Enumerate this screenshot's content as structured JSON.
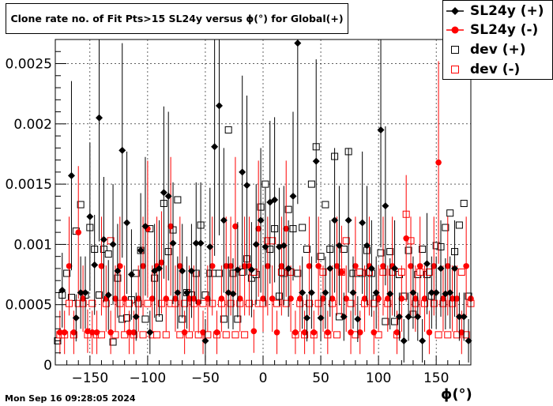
{
  "chart_data": {
    "type": "scatter",
    "title": "Clone rate no. of Fit Pts>15 SL24y versus ϕ(°) for Global(+)",
    "xlabel": "ϕ(°)",
    "ylabel": "",
    "xlim": [
      -180,
      180
    ],
    "ylim": [
      0,
      0.0027
    ],
    "x_ticks": [
      -150,
      -100,
      -50,
      0,
      50,
      100,
      150
    ],
    "x_tick_labels": [
      "−150",
      "−100",
      "−50",
      "0",
      "50",
      "100",
      "150"
    ],
    "y_ticks": [
      0,
      0.0005,
      0.001,
      0.0015,
      0.002,
      0.0025
    ],
    "y_tick_labels": [
      "0",
      "0.0005",
      "0.001",
      "0.0015",
      "0.002",
      "0.0025"
    ],
    "grid": true,
    "legend_position": "top-right",
    "series": [
      {
        "name": "SL24y (+)",
        "color": "#000000",
        "marker": "filled-diamond",
        "x": [
          -174,
          -166,
          -162,
          -158,
          -154,
          -150,
          -146,
          -142,
          -138,
          -134,
          -130,
          -126,
          -122,
          -118,
          -114,
          -110,
          -106,
          -102,
          -98,
          -94,
          -90,
          -86,
          -82,
          -78,
          -74,
          -70,
          -66,
          -62,
          -58,
          -54,
          -50,
          -46,
          -42,
          -38,
          -34,
          -30,
          -26,
          -22,
          -18,
          -14,
          -10,
          -6,
          -2,
          2,
          6,
          10,
          14,
          18,
          22,
          26,
          30,
          34,
          38,
          42,
          46,
          50,
          54,
          58,
          62,
          66,
          70,
          74,
          78,
          82,
          86,
          90,
          94,
          98,
          102,
          106,
          110,
          114,
          118,
          122,
          126,
          130,
          134,
          138,
          142,
          146,
          150,
          154,
          158,
          162,
          166,
          170,
          174,
          178
        ],
        "values": [
          0.00062,
          0.00157,
          0.00039,
          0.0006,
          0.0006,
          0.00123,
          0.00083,
          0.00205,
          0.00104,
          0.00058,
          0.001,
          0.00078,
          0.00178,
          0.00118,
          0.00075,
          0.0004,
          0.00095,
          0.00115,
          0.00027,
          0.00078,
          0.0008,
          0.00143,
          0.0014,
          0.00101,
          0.0006,
          0.00078,
          0.0006,
          0.00078,
          0.00101,
          0.00101,
          0.0002,
          0.00098,
          0.00181,
          0.00215,
          0.0012,
          0.0006,
          0.00059,
          0.00079,
          0.0016,
          0.00149,
          0.00079,
          0.001,
          0.0012,
          0.00098,
          0.00135,
          0.00137,
          0.00098,
          0.00099,
          0.0008,
          0.0014,
          0.00267,
          0.0006,
          0.00039,
          0.0006,
          0.00169,
          0.00039,
          0.0006,
          0.0008,
          0.0012,
          0.00099,
          0.0004,
          0.0012,
          0.0006,
          0.00038,
          0.00118,
          0.00099,
          0.0008,
          0.0006,
          0.00195,
          0.00132,
          0.00059,
          0.0008,
          0.0004,
          0.0002,
          0.0004,
          0.0006,
          0.0004,
          0.0002,
          0.00084,
          0.0006,
          0.0006,
          0.0008,
          0.00059,
          0.0006,
          0.0008,
          0.0004,
          0.0004,
          0.0002
        ]
      },
      {
        "name": "SL24y (-)",
        "color": "#ff0000",
        "marker": "filled-circle",
        "x": [
          -176,
          -172,
          -168,
          -164,
          -160,
          -156,
          -152,
          -148,
          -144,
          -140,
          -136,
          -132,
          -128,
          -124,
          -120,
          -116,
          -112,
          -108,
          -104,
          -100,
          -96,
          -92,
          -88,
          -84,
          -80,
          -76,
          -72,
          -68,
          -64,
          -60,
          -56,
          -52,
          -48,
          -44,
          -40,
          -36,
          -32,
          -28,
          -24,
          -20,
          -16,
          -12,
          -8,
          -4,
          0,
          4,
          8,
          12,
          16,
          20,
          24,
          28,
          32,
          36,
          40,
          44,
          48,
          52,
          56,
          60,
          64,
          68,
          72,
          76,
          80,
          84,
          88,
          92,
          96,
          100,
          104,
          108,
          112,
          116,
          120,
          124,
          128,
          132,
          136,
          140,
          144,
          148,
          152,
          156,
          160,
          164,
          168,
          172,
          176,
          180
        ],
        "values": [
          0.00027,
          0.00027,
          0.00082,
          0.00027,
          0.0011,
          0.00055,
          0.00028,
          0.00027,
          0.00027,
          0.00082,
          0.00055,
          0.00027,
          0.00055,
          0.00082,
          0.00055,
          0.00027,
          0.00027,
          0.00055,
          0.00082,
          0.00113,
          0.00055,
          0.00082,
          0.00085,
          0.00055,
          0.00115,
          0.00055,
          0.00082,
          0.00027,
          0.00055,
          0.00055,
          0.00052,
          0.00027,
          0.00055,
          0.00082,
          0.00027,
          0.00055,
          0.00082,
          0.00082,
          0.00115,
          0.00055,
          0.00082,
          0.00082,
          0.00028,
          0.00113,
          0.00055,
          0.00082,
          0.00055,
          0.00027,
          0.00082,
          0.00113,
          0.00055,
          0.00027,
          0.00055,
          0.00027,
          0.00082,
          0.00027,
          0.00082,
          0.00055,
          0.00027,
          0.00055,
          0.00082,
          0.00077,
          0.00055,
          0.00027,
          0.00082,
          0.00027,
          0.00055,
          0.00082,
          0.00027,
          0.00055,
          0.00082,
          0.00055,
          0.00082,
          0.00027,
          0.00055,
          0.00105,
          0.00082,
          0.00055,
          0.00082,
          0.00055,
          0.00027,
          0.00082,
          0.00168,
          0.00055,
          0.00082,
          0.00055,
          0.00055,
          0.00027,
          0.00082,
          0.00055
        ]
      },
      {
        "name": "dev (+)",
        "color": "#000000",
        "marker": "open-square",
        "x": [
          -178,
          -174,
          -170,
          -166,
          -162,
          -158,
          -154,
          -150,
          -146,
          -142,
          -138,
          -134,
          -130,
          -126,
          -122,
          -118,
          -114,
          -110,
          -106,
          -102,
          -98,
          -94,
          -90,
          -86,
          -82,
          -78,
          -74,
          -70,
          -66,
          -62,
          -58,
          -54,
          -50,
          -46,
          -42,
          -38,
          -34,
          -30,
          -26,
          -22,
          -18,
          -14,
          -10,
          -6,
          -2,
          2,
          6,
          10,
          14,
          18,
          22,
          26,
          30,
          34,
          38,
          42,
          46,
          50,
          54,
          58,
          62,
          66,
          70,
          74,
          78,
          82,
          86,
          90,
          94,
          98,
          102,
          106,
          110,
          114,
          118,
          122,
          126,
          130,
          134,
          138,
          142,
          146,
          150,
          154,
          158,
          162,
          166,
          170,
          174,
          178
        ],
        "values": [
          0.0002,
          0.00058,
          0.00076,
          0.00056,
          0.00111,
          0.00133,
          0.00058,
          0.00114,
          0.00096,
          0.00058,
          0.00096,
          0.00092,
          0.00019,
          0.00072,
          0.00038,
          0.00039,
          0.00054,
          0.00076,
          0.00095,
          0.00038,
          0.00113,
          0.00072,
          0.00039,
          0.00134,
          0.00094,
          0.00112,
          0.00137,
          0.00038,
          0.0006,
          0.00058,
          0.00076,
          0.00116,
          0.00058,
          0.00076,
          0.00076,
          0.00076,
          0.00038,
          0.00195,
          0.00076,
          0.00038,
          0.00077,
          0.00088,
          0.00072,
          0.00075,
          0.00131,
          0.0015,
          0.00096,
          0.00113,
          0.00057,
          0.00076,
          0.00129,
          0.00113,
          0.00076,
          0.00114,
          0.00096,
          0.0015,
          0.00181,
          0.0009,
          0.00133,
          0.00096,
          0.00173,
          0.0004,
          0.00096,
          0.00177,
          0.00076,
          0.00076,
          0.00076,
          0.00095,
          0.00076,
          0.00055,
          0.00093,
          0.00036,
          0.00094,
          0.00036,
          0.00075,
          0.00057,
          0.00095,
          0.00042,
          0.00075,
          0.00096,
          0.00075,
          0.00057,
          0.00099,
          0.00098,
          0.00114,
          0.00126,
          0.00094,
          0.00116,
          0.00134,
          0.00057
        ]
      },
      {
        "name": "dev (-)",
        "color": "#ff0000",
        "marker": "open-square",
        "x": [
          -176,
          -172,
          -168,
          -164,
          -160,
          -156,
          -152,
          -148,
          -144,
          -140,
          -136,
          -132,
          -128,
          -124,
          -120,
          -116,
          -112,
          -108,
          -104,
          -100,
          -96,
          -92,
          -88,
          -84,
          -80,
          -76,
          -72,
          -68,
          -64,
          -60,
          -56,
          -52,
          -48,
          -44,
          -40,
          -36,
          -32,
          -28,
          -24,
          -20,
          -16,
          -12,
          -8,
          -4,
          0,
          4,
          8,
          12,
          16,
          20,
          24,
          28,
          32,
          36,
          40,
          44,
          48,
          52,
          56,
          60,
          64,
          68,
          72,
          76,
          80,
          84,
          88,
          92,
          96,
          100,
          104,
          108,
          112,
          116,
          120,
          124,
          128,
          132,
          136,
          140,
          144,
          148,
          152,
          156,
          160,
          164,
          168,
          172,
          176,
          180
        ],
        "values": [
          0.00025,
          0.00025,
          0.00051,
          0.00025,
          0.00051,
          0.00051,
          0.00025,
          0.00051,
          0.00025,
          0.00025,
          0.00051,
          0.00103,
          0.00025,
          0.00051,
          0.00025,
          0.00051,
          0.00025,
          0.00051,
          0.00025,
          0.00051,
          0.00025,
          0.00025,
          0.00051,
          0.00025,
          0.00051,
          0.00051,
          0.00025,
          0.00051,
          0.00025,
          0.00051,
          0.00025,
          0.00051,
          0.00025,
          0.00051,
          0.00025,
          0.00051,
          0.00025,
          0.00051,
          0.00025,
          0.00051,
          0.00025,
          0.00051,
          0.00077,
          0.00051,
          0.00051,
          0.00103,
          0.00103,
          0.00051,
          0.00077,
          0.00051,
          0.00077,
          0.00025,
          0.00051,
          0.00025,
          0.00051,
          0.00025,
          0.00051,
          0.00077,
          0.00025,
          0.00051,
          0.00025,
          0.00077,
          0.00103,
          0.00051,
          0.00025,
          0.00077,
          0.00051,
          0.00077,
          0.00051,
          0.00025,
          0.00077,
          0.00051,
          0.00077,
          0.00025,
          0.00077,
          0.00125,
          0.00103,
          0.00051,
          0.00077,
          0.00051,
          0.00077,
          0.00051,
          0.00025,
          0.00051,
          0.00025,
          0.00051,
          0.00025,
          0.00077,
          0.00025,
          0.00051
        ]
      }
    ]
  },
  "legend": [
    {
      "label": "SL24y (+)",
      "color": "#000000",
      "marker": "filled-diamond"
    },
    {
      "label": "SL24y (-)",
      "color": "#ff0000",
      "marker": "filled-circle"
    },
    {
      "label": "dev (+)",
      "color": "#000000",
      "marker": "open-square"
    },
    {
      "label": "dev (-)",
      "color": "#ff0000",
      "marker": "open-square"
    }
  ],
  "timestamp": "Mon Sep 16 09:28:05 2024"
}
